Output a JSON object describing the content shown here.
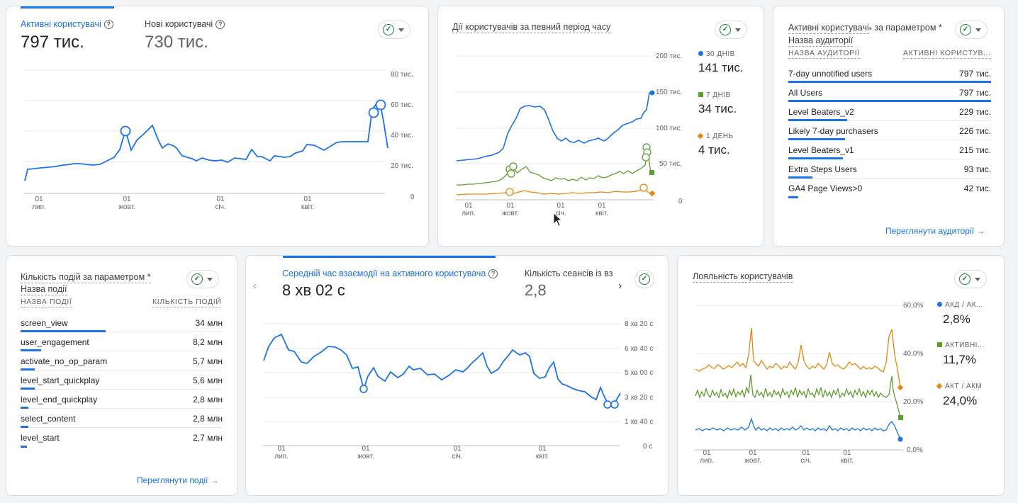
{
  "card1": {
    "tab1_label": "Активні користувачі",
    "tab1_value": "797 тис.",
    "tab2_label": "Нові користувачі",
    "tab2_value": "730 тис.",
    "y_ticks": [
      "80 тис.",
      "60 тис.",
      "40 тис.",
      "20 тис.",
      "0"
    ],
    "x_ticks": [
      {
        "d": "01",
        "m": "лип."
      },
      {
        "d": "01",
        "m": "жовт."
      },
      {
        "d": "01",
        "m": "січ."
      },
      {
        "d": "01",
        "m": "квіт."
      }
    ]
  },
  "card2": {
    "title": "Дії користувачів за певний період часу",
    "y_ticks": [
      "200 тис.",
      "150 тис.",
      "100 тис.",
      "50 тис.",
      "0"
    ],
    "x_ticks": [
      {
        "d": "01",
        "m": "лип."
      },
      {
        "d": "01",
        "m": "жовт."
      },
      {
        "d": "01",
        "m": "січ."
      },
      {
        "d": "01",
        "m": "квіт."
      }
    ],
    "legend": [
      {
        "label": "30 ДНІВ",
        "value": "141 тис.",
        "color": "#1a73e8",
        "shape": "circle"
      },
      {
        "label": "7 ДНІВ",
        "value": "34 тис.",
        "color": "#5e9e2d",
        "shape": "square"
      },
      {
        "label": "1 ДЕНЬ",
        "value": "4 тис.",
        "color": "#e8860d",
        "shape": "diamond"
      }
    ]
  },
  "card3": {
    "title_line1": "Активні користувачі",
    "title_mid": "за параметром *",
    "title_line2": "Назва аудиторії",
    "col1": "НАЗВА АУДИТОРІЇ",
    "col2": "АКТИВНІ КОРИСТУВ...",
    "rows": [
      {
        "name": "7-day unnotified users",
        "value": "797 тис.",
        "pct": 100
      },
      {
        "name": "All Users",
        "value": "797 тис.",
        "pct": 100
      },
      {
        "name": "Level Beaters_v2",
        "value": "229 тис.",
        "pct": 29
      },
      {
        "name": "Likely 7-day purchasers",
        "value": "226 тис.",
        "pct": 28
      },
      {
        "name": "Level Beaters_v1",
        "value": "215 тис.",
        "pct": 27
      },
      {
        "name": "Extra Steps Users",
        "value": "93 тис.",
        "pct": 12
      },
      {
        "name": "GA4 Page Views>0",
        "value": "42 тис.",
        "pct": 5
      }
    ],
    "link": "Переглянути аудиторії"
  },
  "card4": {
    "title_line1": "Кількість подій за параметром *",
    "title_line2": "Назва події",
    "col1": "НАЗВА ПОДІЇ",
    "col2": "КІЛЬКІСТЬ ПОДІЙ",
    "rows": [
      {
        "name": "screen_view",
        "value": "34 млн",
        "pct": 100
      },
      {
        "name": "user_engagement",
        "value": "8,2 млн",
        "pct": 24
      },
      {
        "name": "activate_no_op_param",
        "value": "5,7 млн",
        "pct": 17
      },
      {
        "name": "level_start_quickplay",
        "value": "5,6 млн",
        "pct": 16
      },
      {
        "name": "level_end_quickplay",
        "value": "2,8 млн",
        "pct": 8
      },
      {
        "name": "select_content",
        "value": "2,8 млн",
        "pct": 8
      },
      {
        "name": "level_start",
        "value": "2,7 млн",
        "pct": 8
      }
    ],
    "link": "Переглянути події"
  },
  "card5": {
    "tab1_label": "Середній час взаємодії на активного користувача",
    "tab1_value": "8 хв 02 с",
    "tab2_label": "Кількість сеансів із вз",
    "tab2_value": "2,8",
    "y_ticks": [
      "8 хв 20 с",
      "6 хв 40 с",
      "5 хв 00 с",
      "3 хв 20 с",
      "1 хв 40 с",
      "0 с"
    ],
    "x_ticks": [
      {
        "d": "01",
        "m": "лип."
      },
      {
        "d": "01",
        "m": "жовт."
      },
      {
        "d": "01",
        "m": "січ."
      },
      {
        "d": "01",
        "m": "квіт."
      }
    ]
  },
  "card6": {
    "title": "Лояльність користувачів",
    "y_ticks": [
      "60,0%",
      "40,0%",
      "20,0%",
      "0,0%"
    ],
    "x_ticks": [
      {
        "d": "01",
        "m": "лип."
      },
      {
        "d": "01",
        "m": "жовт."
      },
      {
        "d": "01",
        "m": "січ."
      },
      {
        "d": "01",
        "m": "квіт."
      }
    ],
    "legend": [
      {
        "label": "АКД / АК...",
        "value": "2,8%",
        "color": "#1a73e8",
        "shape": "circle"
      },
      {
        "label": "АКТИВНІ...",
        "value": "11,7%",
        "color": "#5e9e2d",
        "shape": "square"
      },
      {
        "label": "АКТ / АКМ",
        "value": "24,0%",
        "color": "#e8860d",
        "shape": "diamond"
      }
    ]
  },
  "colors": {
    "blue": "#1a73e8",
    "green": "#5e9e2d",
    "orange": "#e8860d",
    "check": "#188038"
  }
}
